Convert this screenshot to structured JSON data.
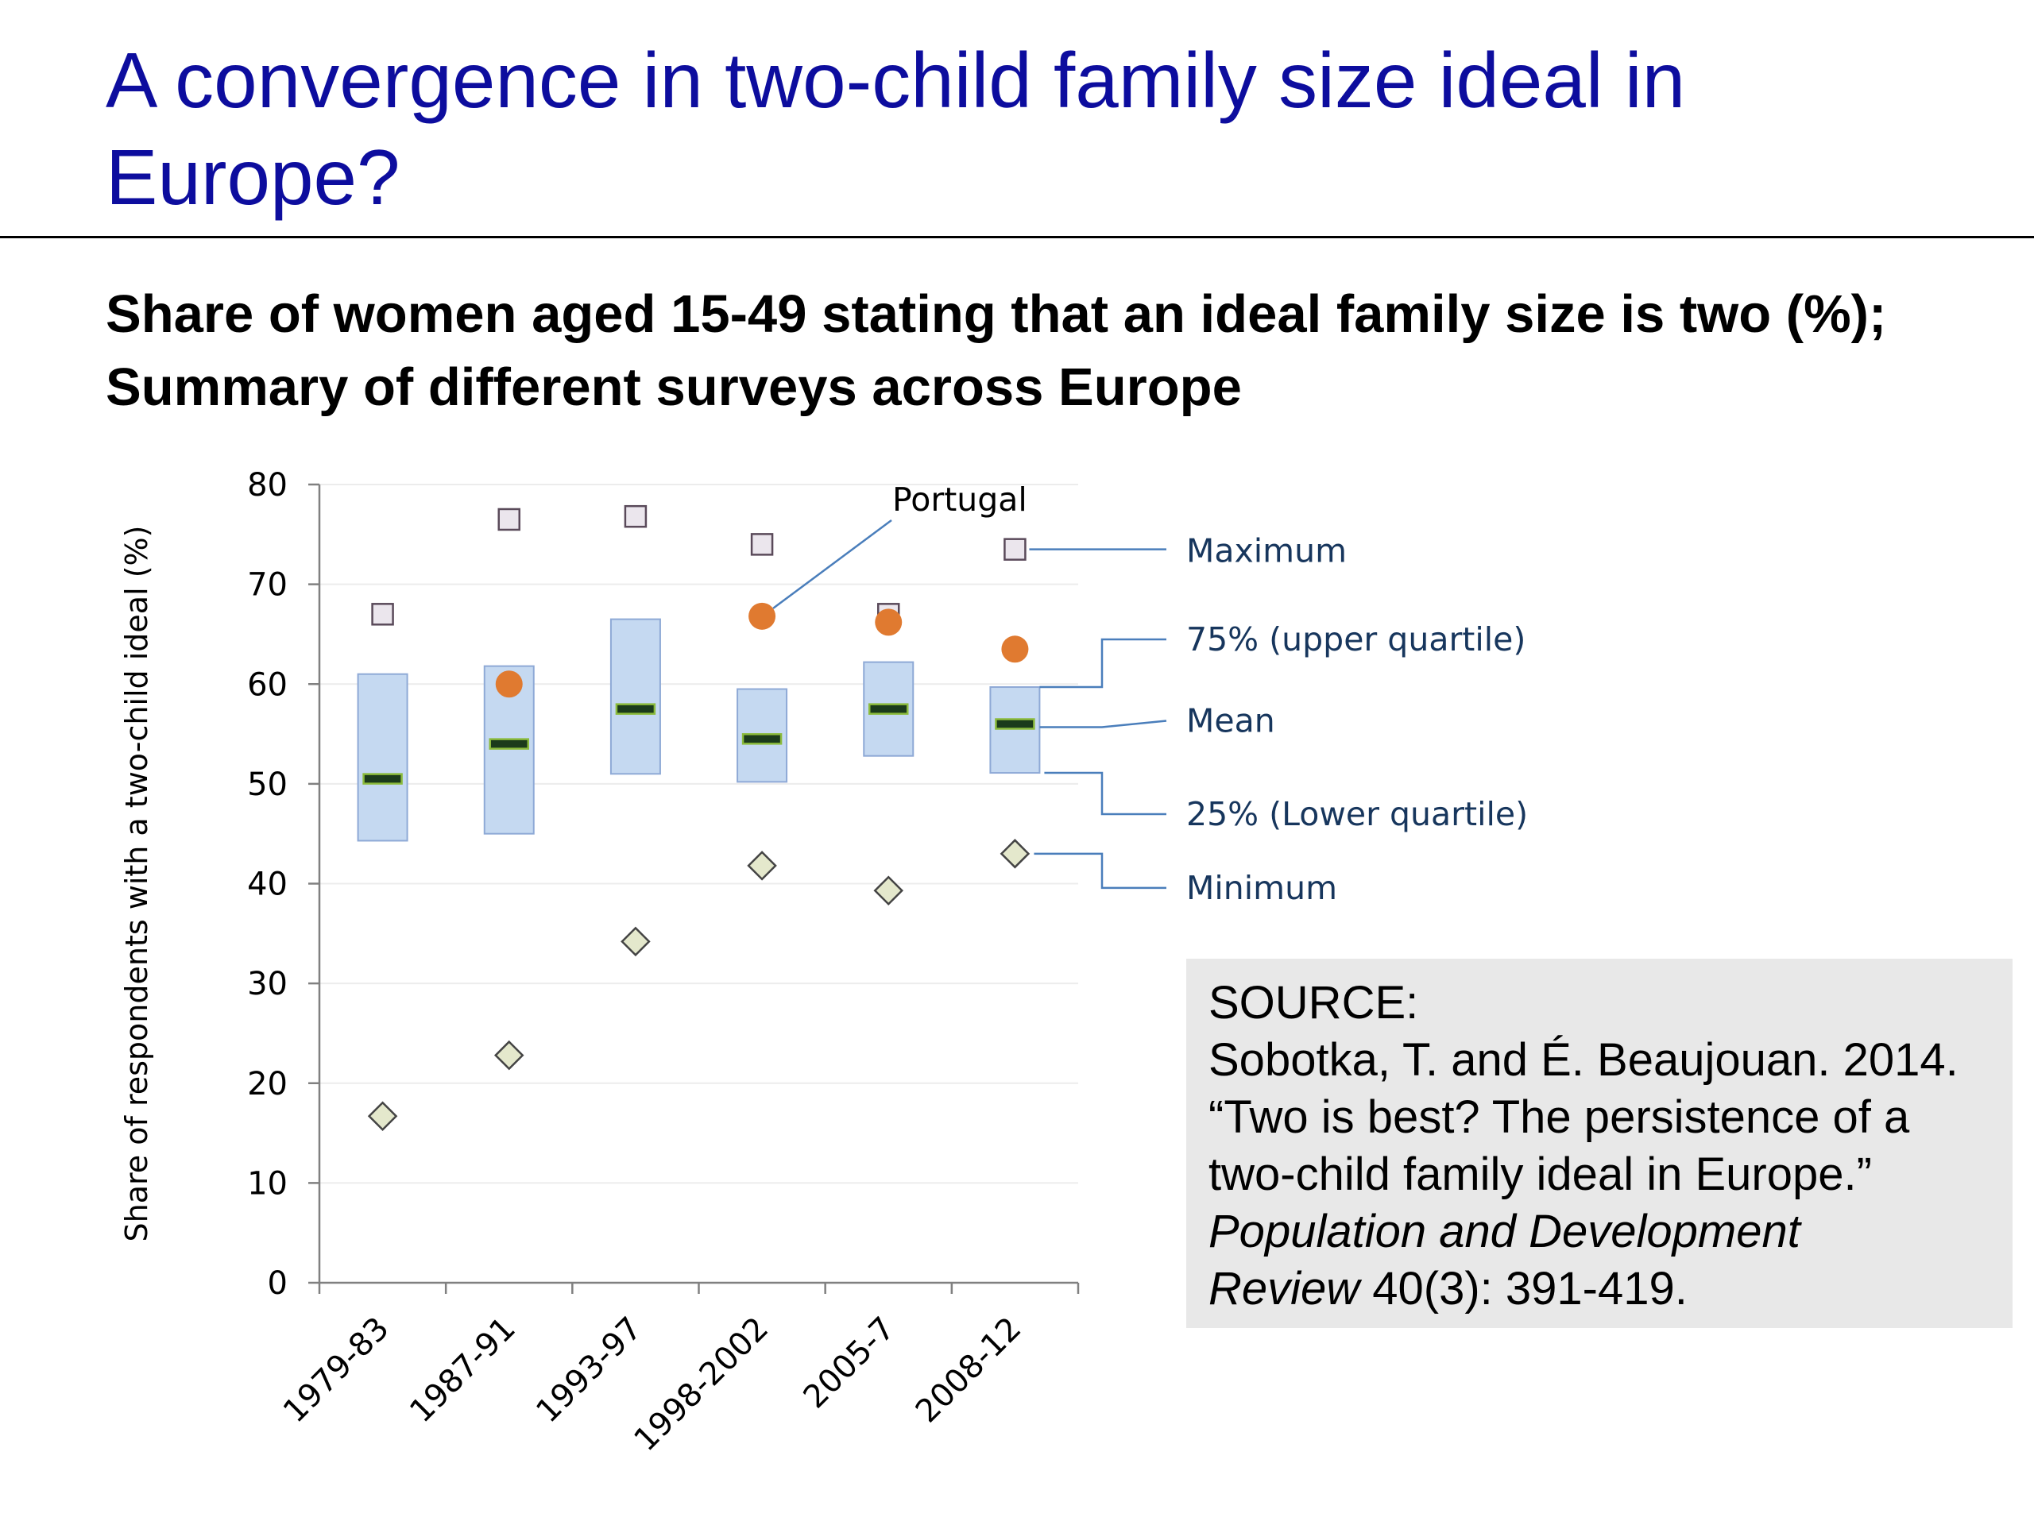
{
  "title": "A convergence in two-child family size ideal in Europe?",
  "subtitle_line1": "Share of women aged 15-49 stating that an ideal family size is two (%);",
  "subtitle_line2": "Summary of different surveys across Europe",
  "source": {
    "label": "SOURCE:",
    "line1": "Sobotka, T. and É. Beaujouan. 2014.",
    "line2": "“Two is best? The persistence of a",
    "line3": "two-child family ideal in Europe.”",
    "journal_line1": "Population and Development",
    "journal_line2": "Review",
    "citation_rest": " 40(3): 391-419."
  },
  "chart_data": {
    "type": "box",
    "ylabel": "Share of respondents with a two-child ideal (%)",
    "xlabel": "",
    "ylim": [
      0,
      80
    ],
    "yticks": [
      0,
      10,
      20,
      30,
      40,
      50,
      60,
      70,
      80
    ],
    "categories": [
      "1979-83",
      "1987-91",
      "1993-97",
      "1998-2002",
      "2005-7",
      "2008-12"
    ],
    "series": [
      {
        "key": "max",
        "values": [
          67,
          76.5,
          76.8,
          74,
          67,
          73.5
        ]
      },
      {
        "key": "q3",
        "values": [
          61,
          61.8,
          66.5,
          59.5,
          62.2,
          59.7
        ]
      },
      {
        "key": "mean",
        "values": [
          50.5,
          54,
          57.5,
          54.5,
          57.5,
          56
        ]
      },
      {
        "key": "q1",
        "values": [
          44.3,
          45,
          51,
          50.2,
          52.8,
          51.1
        ]
      },
      {
        "key": "min",
        "values": [
          16.7,
          22.8,
          34.2,
          41.8,
          39.3,
          43
        ]
      },
      {
        "key": "portugal",
        "values": [
          null,
          60,
          null,
          66.8,
          66.2,
          63.5
        ]
      }
    ],
    "annotations": {
      "portugal": "Portugal",
      "maximum": "Maximum",
      "upper_quartile": "75% (upper quartile)",
      "mean": "Mean",
      "lower_quartile": "25% (Lower quartile)",
      "minimum": "Minimum"
    },
    "colors": {
      "box_fill": "#c5d9f1",
      "box_stroke": "#8ea9d6",
      "mean_bar": "#1b3b1b",
      "mean_outline": "#8bbb3c",
      "portugal": "#e07a30",
      "max_marker_fill": "#ebe6ed",
      "max_marker_stroke": "#5a4a5a",
      "min_marker_fill": "#e4e8cc",
      "min_marker_stroke": "#444444",
      "annotation_text": "#17365d",
      "annotation_line": "#4a7ebb"
    }
  }
}
